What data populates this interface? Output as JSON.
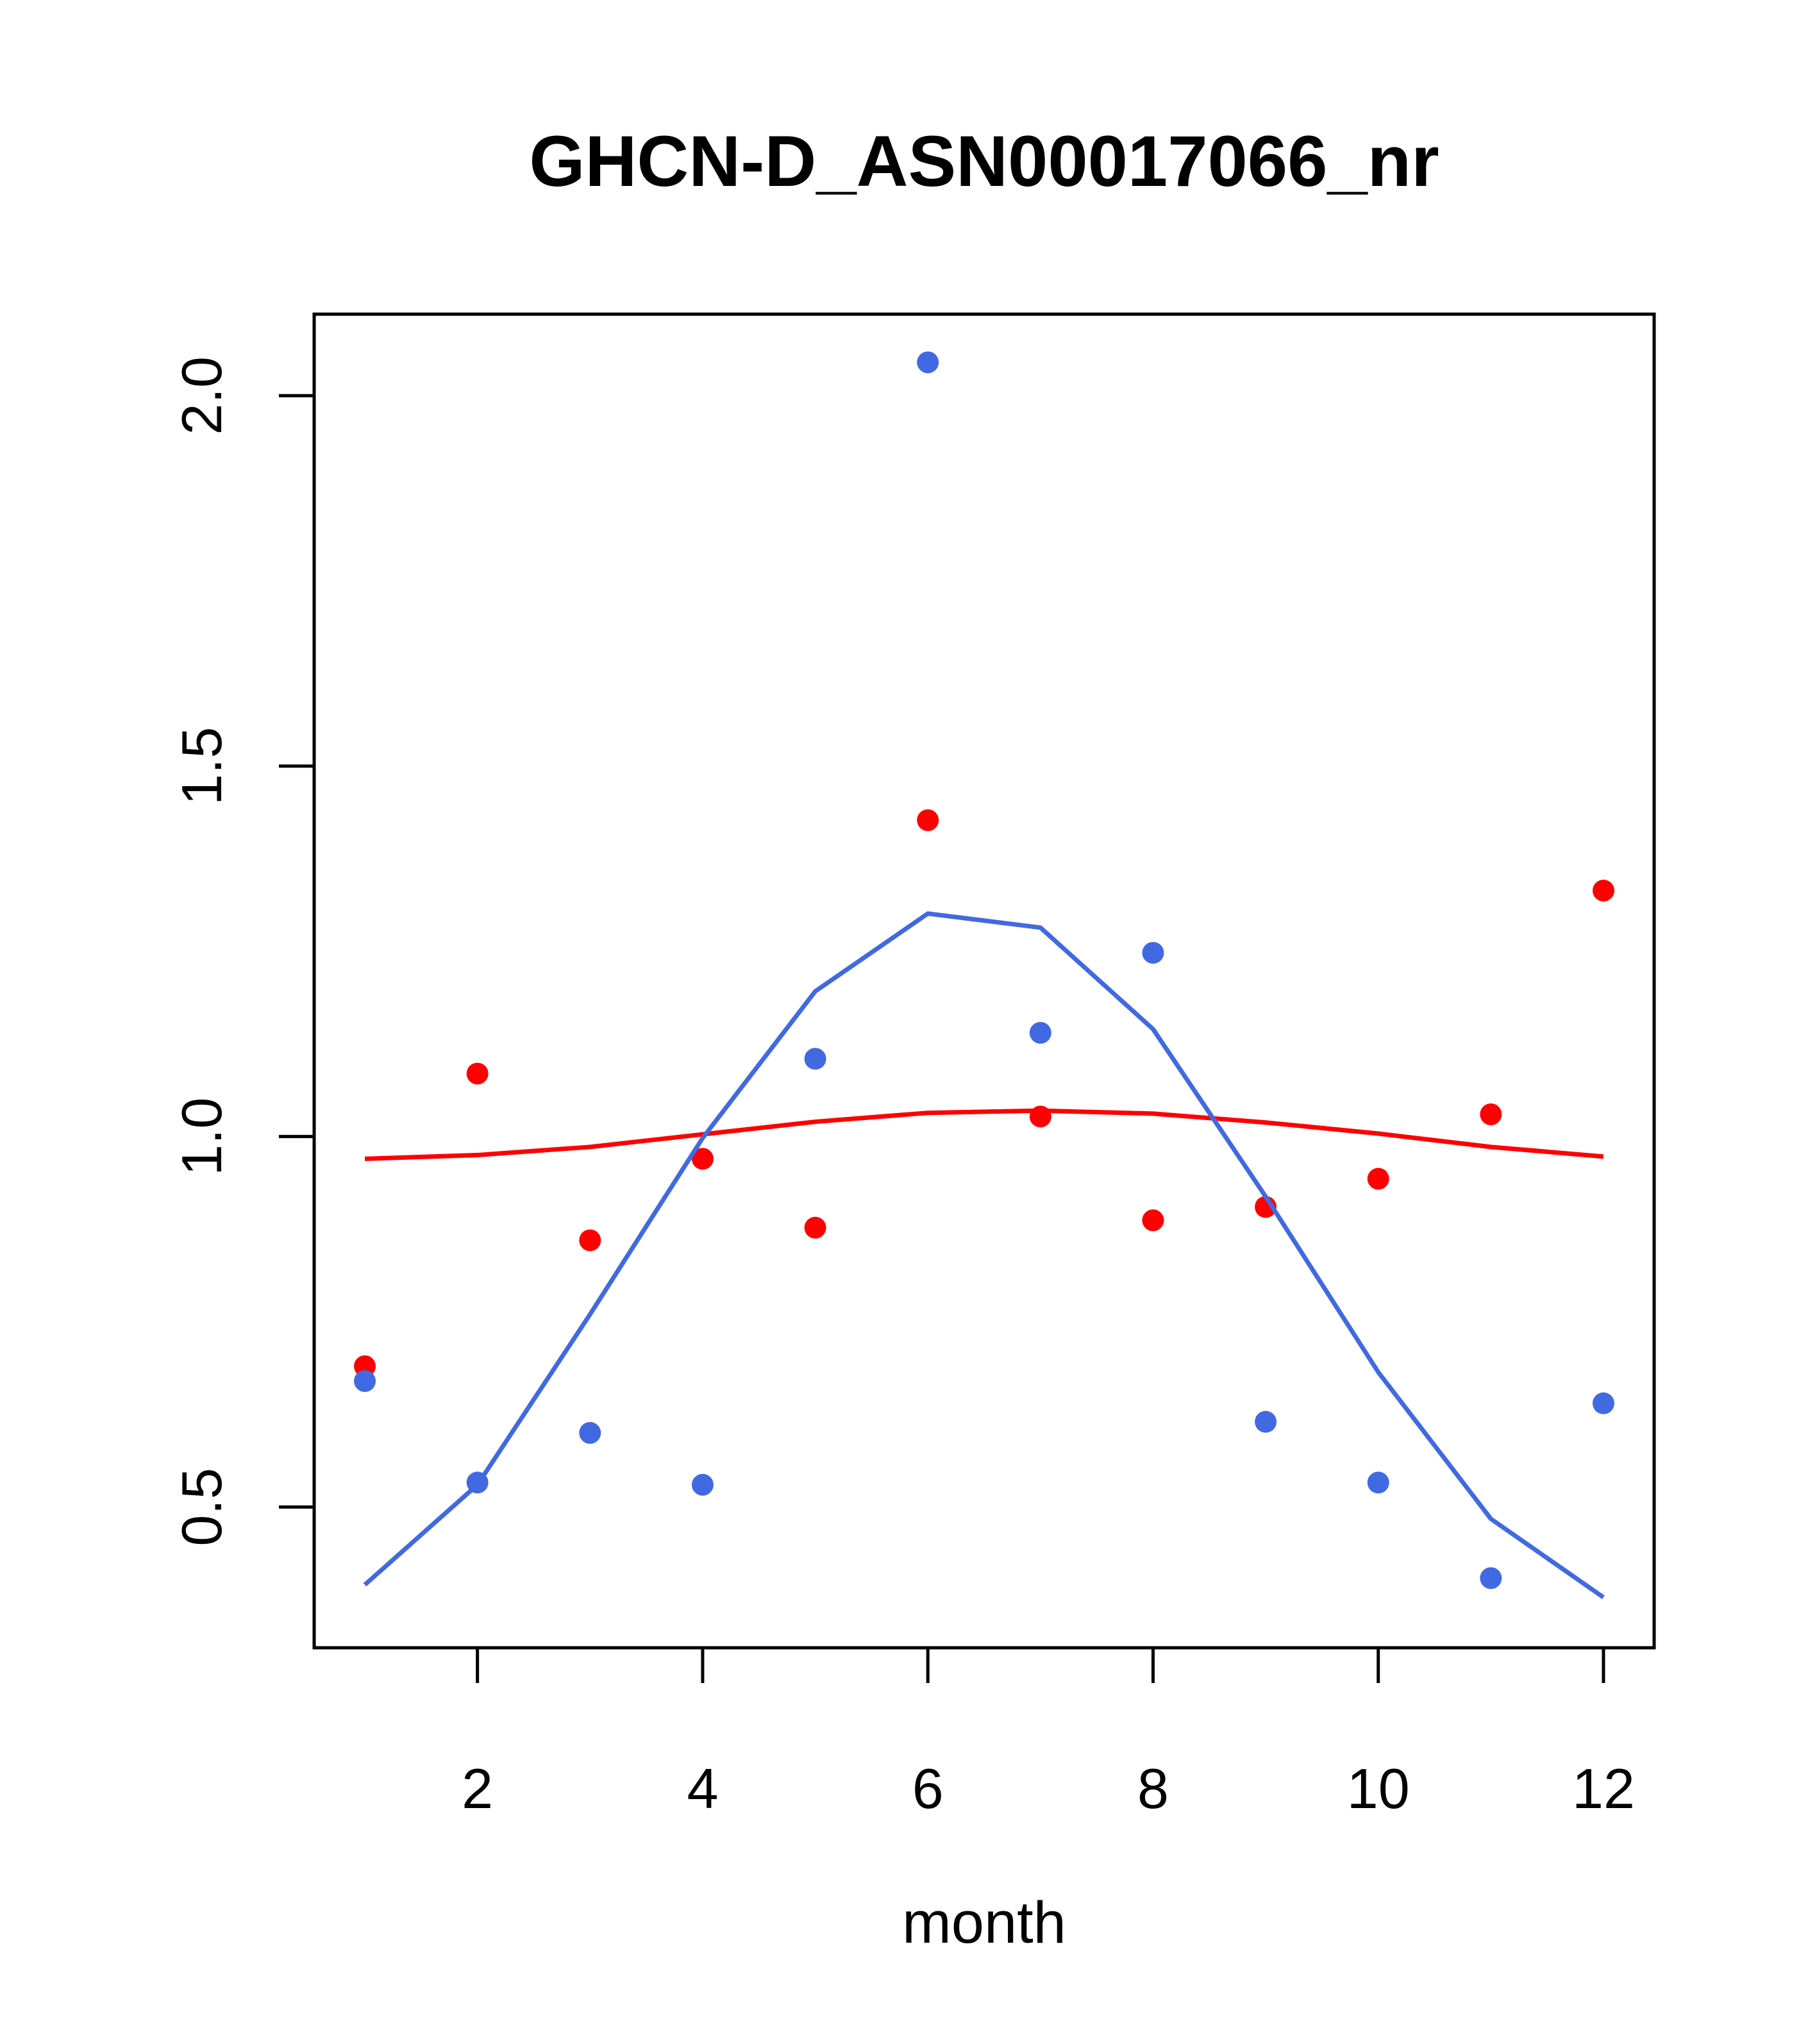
{
  "chart_data": {
    "type": "scatter",
    "title": "GHCN-D_ASN00017066_nr",
    "xlabel": "month",
    "ylabel": "",
    "xlim": [
      0.55,
      12.45
    ],
    "ylim": [
      0.31,
      2.11
    ],
    "x_ticks": [
      2,
      4,
      6,
      8,
      10,
      12
    ],
    "y_ticks": [
      0.5,
      1.0,
      1.5,
      2.0
    ],
    "x_tick_labels": [
      "2",
      "4",
      "6",
      "8",
      "10",
      "12"
    ],
    "y_tick_labels": [
      "0.5",
      "1.0",
      "1.5",
      "2.0"
    ],
    "grid": false,
    "legend": "none",
    "x": [
      1,
      2,
      3,
      4,
      5,
      6,
      7,
      8,
      9,
      10,
      11,
      12
    ],
    "series": [
      {
        "color": "#ff0000",
        "points": [
          0.69,
          1.085,
          0.86,
          0.97,
          0.877,
          1.427,
          1.027,
          0.887,
          0.905,
          0.943,
          1.03,
          1.332
        ],
        "line": [
          0.97,
          0.975,
          0.986,
          1.003,
          1.02,
          1.032,
          1.035,
          1.031,
          1.019,
          1.004,
          0.986,
          0.973
        ]
      },
      {
        "color": "#4169e1",
        "points": [
          0.67,
          0.533,
          0.6,
          0.53,
          1.105,
          2.045,
          1.14,
          1.248,
          0.615,
          0.533,
          0.404,
          0.64
        ],
        "line": [
          0.395,
          0.53,
          0.76,
          0.998,
          1.196,
          1.301,
          1.282,
          1.145,
          0.919,
          0.682,
          0.484,
          0.378
        ]
      }
    ]
  }
}
